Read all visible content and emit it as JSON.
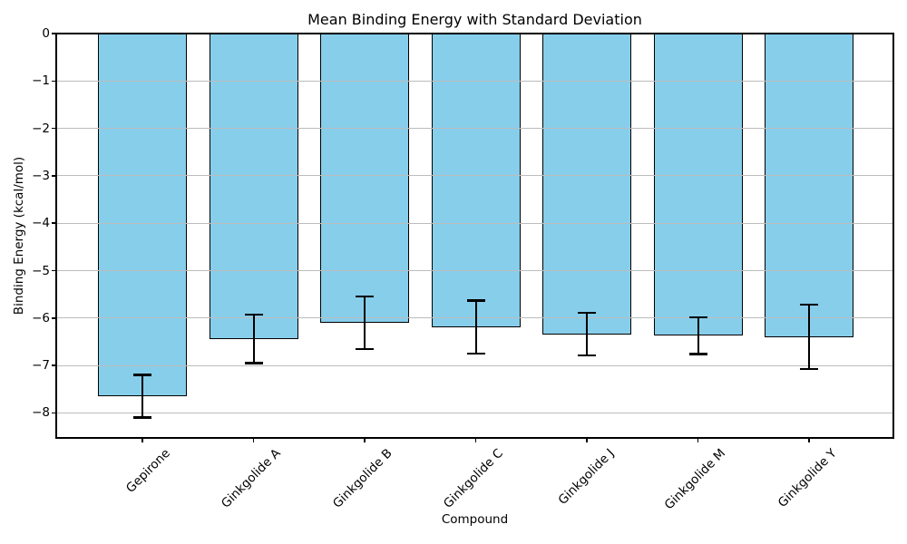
{
  "figure": {
    "background": "#ffffff",
    "text_color": "#000000"
  },
  "chart_data": {
    "type": "bar",
    "title": "Mean Binding Energy with Standard Deviation",
    "xlabel": "Compound",
    "ylabel": "Binding Energy (kcal/mol)",
    "categories": [
      "Gepirone",
      "Ginkgolide A",
      "Ginkgolide B",
      "Ginkgolide C",
      "Ginkgolide J",
      "Ginkgolide M",
      "Ginkgolide Y"
    ],
    "series": [
      {
        "name": "Mean Binding Energy (kcal/mol)",
        "values": [
          -7.65,
          -6.44,
          -6.1,
          -6.19,
          -6.34,
          -6.37,
          -6.4
        ],
        "std_devs": [
          0.45,
          0.51,
          0.55,
          0.56,
          0.45,
          0.39,
          0.68
        ]
      }
    ],
    "ylim": [
      -8.53,
      0
    ],
    "yticks": [
      0,
      -1,
      -2,
      -3,
      -4,
      -5,
      -6,
      -7,
      -8
    ],
    "ytick_labels": [
      "0",
      "−1",
      "−2",
      "−3",
      "−4",
      "−5",
      "−6",
      "−7",
      "−8"
    ],
    "x_tick_rotation_deg": 45,
    "grid": true,
    "legend": "none",
    "colors": {
      "bar_fill": "#87CEEB",
      "bar_edge": "#000000",
      "error_bar": "#000000",
      "gridline": "#bcbcbc",
      "spine": "#000000"
    }
  }
}
